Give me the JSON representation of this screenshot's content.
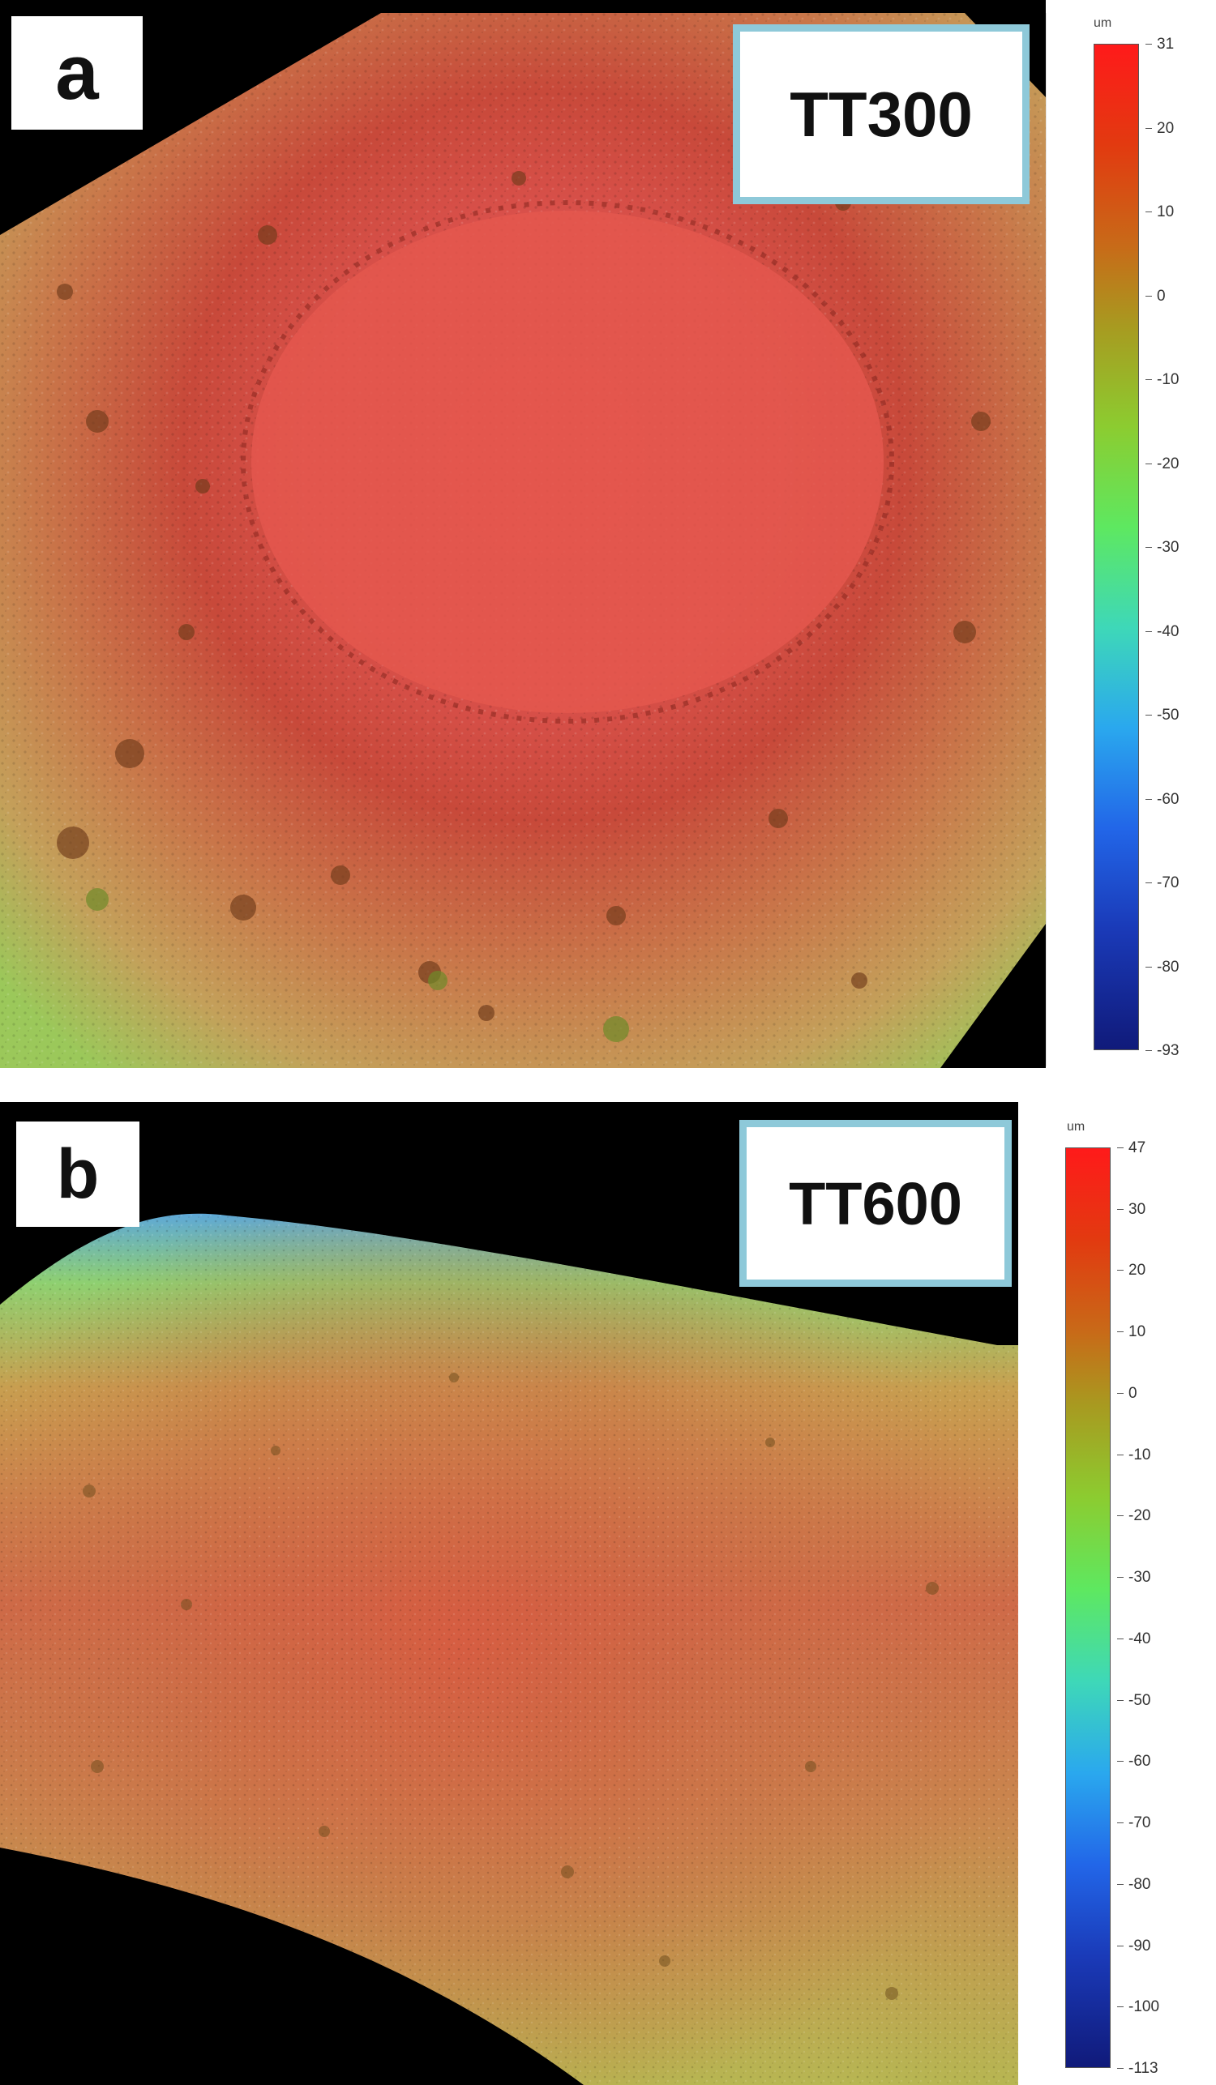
{
  "panels": [
    {
      "letter": "a",
      "sample": "TT300",
      "scale_unit": "um",
      "scale_ticks": [
        "31",
        "20",
        "10",
        "0",
        "-10",
        "-20",
        "-30",
        "-40",
        "-50",
        "-60",
        "-70",
        "-80",
        "-93"
      ]
    },
    {
      "letter": "b",
      "sample": "TT600",
      "scale_unit": "um",
      "scale_ticks": [
        "47",
        "30",
        "20",
        "10",
        "0",
        "-10",
        "-20",
        "-30",
        "-40",
        "-50",
        "-60",
        "-70",
        "-80",
        "-90",
        "-100",
        "-113"
      ]
    }
  ],
  "colors": {
    "label_border": "#8ec9d9",
    "background_outside": "#000000",
    "surface_high": "#e04a3c",
    "surface_mid": "#c89a5a",
    "surface_low": "#9fca58"
  }
}
